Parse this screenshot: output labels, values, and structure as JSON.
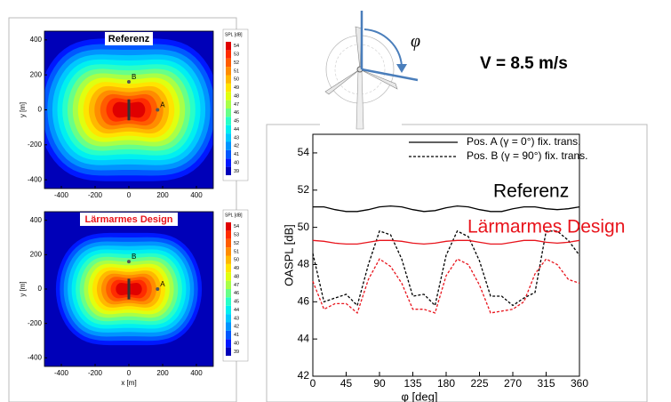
{
  "slide": {
    "speed": "V = 8.5 m/s",
    "angle_symbol": "φ"
  },
  "chart_data": [
    {
      "type": "contour",
      "title": "Referenz",
      "title_color": "#000000",
      "ylabel": "y [m]",
      "xlim": [
        -500,
        500
      ],
      "ylim": [
        -450,
        450
      ],
      "xticks": [
        -400,
        -200,
        0,
        200,
        400
      ],
      "yticks": [
        400,
        200,
        0,
        -200,
        -400
      ],
      "colorbar_title": "SPL [dB]",
      "levels": [
        39,
        40,
        41,
        42,
        43,
        44,
        45,
        46,
        47,
        48,
        49,
        50,
        51,
        52,
        53,
        54
      ],
      "colors": [
        "#0000b8",
        "#0018ff",
        "#0058ff",
        "#0094ff",
        "#00c8ff",
        "#00f0f0",
        "#28ffc8",
        "#68ff88",
        "#a8ff48",
        "#e0ff10",
        "#ffe400",
        "#ffb800",
        "#ff8c00",
        "#ff5c00",
        "#ff2c00",
        "#e00000"
      ],
      "points": [
        {
          "name": "A",
          "x": 170,
          "y": 0
        },
        {
          "name": "B",
          "x": 0,
          "y": 160
        }
      ]
    },
    {
      "type": "contour",
      "title": "Lärmarmes Design",
      "title_color": "#e8141c",
      "xlabel": "x [m]",
      "ylabel": "y [m]",
      "xlim": [
        -500,
        500
      ],
      "ylim": [
        -450,
        450
      ],
      "xticks": [
        -400,
        -200,
        0,
        200,
        400
      ],
      "yticks": [
        400,
        200,
        0,
        -200,
        -400
      ],
      "colorbar_title": "SPL [dB]",
      "levels": [
        39,
        40,
        41,
        42,
        43,
        44,
        45,
        46,
        47,
        48,
        49,
        50,
        51,
        52,
        53,
        54
      ],
      "colors": [
        "#0000b8",
        "#0018ff",
        "#0058ff",
        "#0094ff",
        "#00c8ff",
        "#00f0f0",
        "#28ffc8",
        "#68ff88",
        "#a8ff48",
        "#e0ff10",
        "#ffe400",
        "#ffb800",
        "#ff8c00",
        "#ff5c00",
        "#ff2c00",
        "#e00000"
      ],
      "points": [
        {
          "name": "A",
          "x": 170,
          "y": 0
        },
        {
          "name": "B",
          "x": 0,
          "y": 160
        }
      ]
    },
    {
      "type": "line",
      "xlabel": "φ [deg]",
      "ylabel": "OASPL [dB]",
      "x": [
        0,
        15,
        30,
        45,
        60,
        75,
        90,
        105,
        120,
        135,
        150,
        165,
        180,
        195,
        210,
        225,
        240,
        255,
        270,
        285,
        300,
        315,
        330,
        345,
        360
      ],
      "xlim": [
        0,
        360
      ],
      "ylim": [
        42,
        55
      ],
      "xticks": [
        0,
        45,
        90,
        135,
        180,
        225,
        270,
        315,
        360
      ],
      "yticks": [
        42,
        44,
        46,
        48,
        50,
        52,
        54
      ],
      "legend": "upper right",
      "series": [
        {
          "name": "Pos. A (γ = 0°) fix. trans.",
          "color": "#000000",
          "line_style": "solid",
          "values": [
            51.1,
            51.1,
            50.95,
            50.85,
            50.85,
            50.95,
            51.1,
            51.15,
            51.1,
            50.95,
            50.85,
            50.9,
            51.05,
            51.15,
            51.1,
            50.95,
            50.85,
            50.85,
            51.0,
            51.1,
            51.1,
            51.0,
            50.95,
            51.0,
            51.1
          ]
        },
        {
          "name": "Pos. B (γ = 90°) fix. trans.",
          "color": "#000000",
          "line_style": "dashed",
          "values": [
            48.6,
            46.0,
            46.2,
            46.4,
            45.8,
            48.0,
            49.8,
            49.6,
            48.3,
            46.3,
            46.4,
            45.8,
            48.5,
            49.8,
            49.5,
            48.2,
            46.3,
            46.3,
            45.8,
            46.2,
            46.5,
            49.8,
            49.8,
            49.3,
            48.5
          ]
        },
        {
          "color": "#e8141c",
          "line_style": "solid",
          "values": [
            49.3,
            49.25,
            49.15,
            49.1,
            49.1,
            49.2,
            49.3,
            49.3,
            49.25,
            49.15,
            49.1,
            49.15,
            49.25,
            49.3,
            49.3,
            49.2,
            49.1,
            49.1,
            49.2,
            49.3,
            49.3,
            49.2,
            49.15,
            49.2,
            49.3
          ]
        },
        {
          "color": "#e8141c",
          "line_style": "dashed",
          "values": [
            47.1,
            45.6,
            45.9,
            45.9,
            45.4,
            47.2,
            48.3,
            47.9,
            47.0,
            45.6,
            45.6,
            45.4,
            47.4,
            48.3,
            48.0,
            46.9,
            45.4,
            45.5,
            45.6,
            46.0,
            47.5,
            48.3,
            48.0,
            47.2,
            47.0
          ]
        }
      ],
      "annotations": [
        {
          "text": "Referenz",
          "color": "#000000"
        },
        {
          "text": "Lärmarmes Design",
          "color": "#e8141c"
        }
      ]
    }
  ]
}
